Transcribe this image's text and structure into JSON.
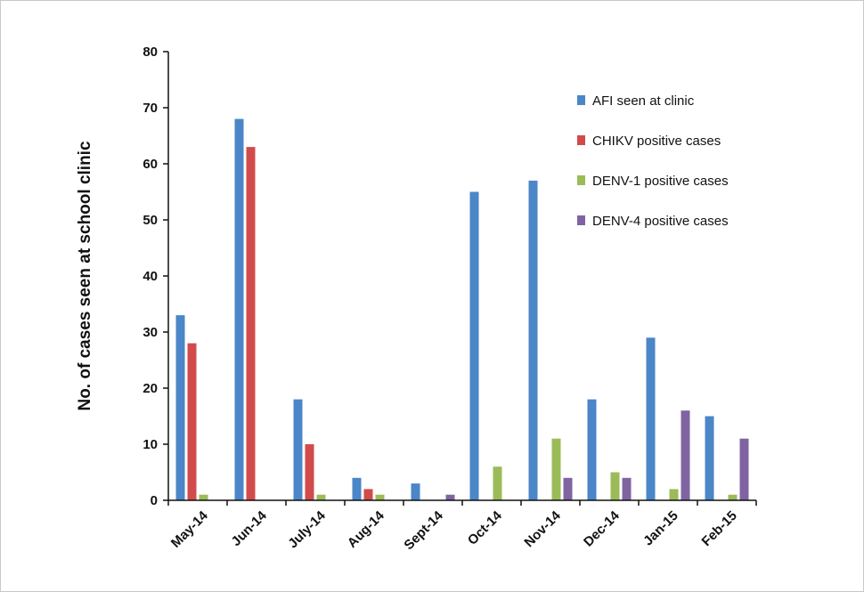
{
  "chart_data": {
    "type": "bar",
    "ylabel": "No. of cases seen at school clinic",
    "ylim": [
      0,
      80
    ],
    "yticks": [
      0,
      10,
      20,
      30,
      40,
      50,
      60,
      70,
      80
    ],
    "grid": false,
    "legend_position": "top-right",
    "categories": [
      "May-14",
      "Jun-14",
      "July-14",
      "Aug-14",
      "Sept-14",
      "Oct-14",
      "Nov-14",
      "Dec-14",
      "Jan-15",
      "Feb-15"
    ],
    "series": [
      {
        "name": "AFI seen at clinic",
        "color": "#4a86c8",
        "values": [
          33,
          68,
          18,
          4,
          3,
          55,
          57,
          18,
          29,
          15
        ]
      },
      {
        "name": "CHIKV positive cases",
        "color": "#d24b4b",
        "values": [
          28,
          63,
          10,
          2,
          0,
          0,
          0,
          0,
          0,
          0
        ]
      },
      {
        "name": "DENV-1 positive cases",
        "color": "#9bbb59",
        "values": [
          1,
          0,
          1,
          1,
          0,
          6,
          11,
          5,
          2,
          1
        ]
      },
      {
        "name": "DENV-4 positive cases",
        "color": "#8064a2",
        "values": [
          0,
          0,
          0,
          0,
          1,
          0,
          4,
          4,
          16,
          11
        ]
      }
    ]
  }
}
